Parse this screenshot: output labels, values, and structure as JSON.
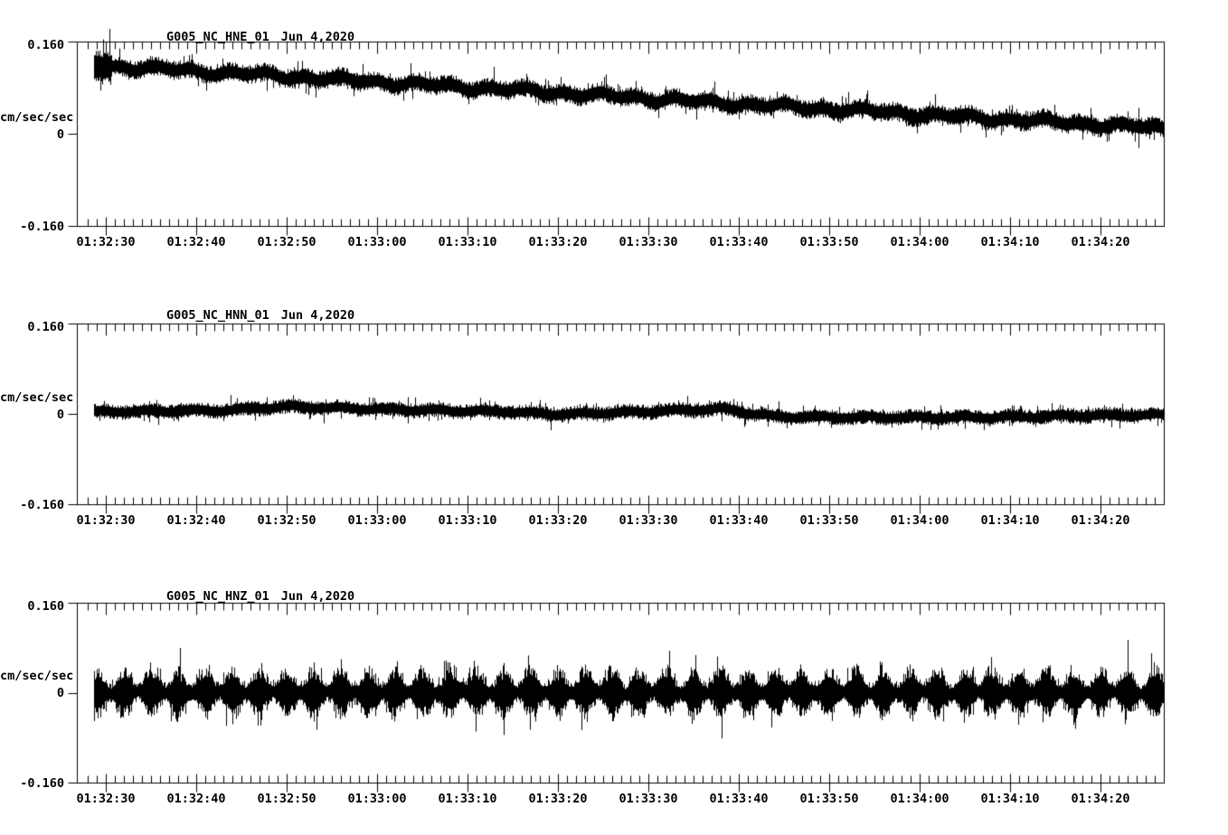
{
  "page": {
    "background": "#ffffff",
    "ink": "#000000"
  },
  "chart_data": [
    {
      "type": "line",
      "kind": "seismogram-trace",
      "title": "G005_NC_HNE_01",
      "date_label": "Jun 4,2020",
      "ylabel": "cm/sec/sec",
      "yticks": [
        "0.160",
        "0",
        "-0.160"
      ],
      "ylim": [
        -0.16,
        0.16
      ],
      "xticklabels": [
        "01:32:30",
        "01:32:40",
        "01:32:50",
        "01:33:00",
        "01:33:10",
        "01:33:20",
        "01:33:30",
        "01:33:40",
        "01:33:50",
        "01:34:00",
        "01:34:10",
        "01:34:20"
      ],
      "x_axis": {
        "minor_tick_s": 1,
        "major_tick_s": 10,
        "xlim_s_after_0132": [
          26.8,
          147.2
        ],
        "grid": false
      },
      "series": {
        "name": "G005_NC_HNE_01",
        "centerline": [
          [
            28.8,
            0.119
          ],
          [
            58,
            0.092
          ],
          [
            103,
            0.049
          ],
          [
            147.2,
            0.009
          ]
        ],
        "noise_halfwidth": 0.017,
        "center_wiggle": [
          [
            0.0035,
            41,
            0.5
          ],
          [
            0.0028,
            97,
            2.1
          ]
        ],
        "spike_prob": 0.06,
        "spike_gain": [
          1.5,
          2.2
        ],
        "onset": {
          "until_s": 30.7,
          "factor": 1.9
        },
        "seed": 20200604
      }
    },
    {
      "type": "line",
      "kind": "seismogram-trace",
      "title": "G005_NC_HNN_01",
      "date_label": "Jun 4,2020",
      "ylabel": "cm/sec/sec",
      "yticks": [
        "0.160",
        "0",
        "-0.160"
      ],
      "ylim": [
        -0.16,
        0.16
      ],
      "xticklabels": [
        "01:32:30",
        "01:32:40",
        "01:32:50",
        "01:33:00",
        "01:33:10",
        "01:33:20",
        "01:33:30",
        "01:33:40",
        "01:33:50",
        "01:34:00",
        "01:34:10",
        "01:34:20"
      ],
      "x_axis": {
        "minor_tick_s": 1,
        "major_tick_s": 10,
        "xlim_s_after_0132": [
          26.8,
          147.2
        ],
        "grid": false
      },
      "series": {
        "name": "G005_NC_HNN_01",
        "centerline": [
          [
            28.8,
            0.004
          ],
          [
            43,
            0.006
          ],
          [
            50,
            0.013
          ],
          [
            61,
            0.008
          ],
          [
            74,
            0.004
          ],
          [
            80,
            -0.001
          ],
          [
            88,
            0.003
          ],
          [
            98,
            0.009
          ],
          [
            104,
            -0.005
          ],
          [
            113,
            -0.006
          ],
          [
            128,
            -0.006
          ],
          [
            138,
            -0.003
          ],
          [
            147.2,
            -0.002
          ]
        ],
        "noise_halfwidth": 0.0135,
        "center_wiggle": [
          [
            0.002,
            53,
            1.0
          ]
        ],
        "spike_prob": 0.07,
        "spike_gain": [
          1.4,
          2.1
        ],
        "seed": 41
      }
    },
    {
      "type": "line",
      "kind": "seismogram-trace",
      "title": "G005_NC_HNZ_01",
      "date_label": "Jun 4,2020",
      "ylabel": "cm/sec/sec",
      "yticks": [
        "0.160",
        "0",
        "-0.160"
      ],
      "ylim": [
        -0.16,
        0.16
      ],
      "xticklabels": [
        "01:32:30",
        "01:32:40",
        "01:32:50",
        "01:33:00",
        "01:33:10",
        "01:33:20",
        "01:33:30",
        "01:33:40",
        "01:33:50",
        "01:34:00",
        "01:34:10",
        "01:34:20"
      ],
      "x_axis": {
        "minor_tick_s": 1,
        "major_tick_s": 10,
        "xlim_s_after_0132": [
          26.8,
          147.2
        ],
        "grid": false
      },
      "series": {
        "name": "G005_NC_HNZ_01",
        "centerline": [
          [
            28.8,
            0.0
          ],
          [
            147.2,
            0.0
          ]
        ],
        "envelope": {
          "period_s": 3,
          "min": 0.017,
          "max": 0.05,
          "phase": 1.2,
          "jitter": 0.3
        },
        "center_wiggle": [
          [
            0.002,
            71,
            0
          ]
        ],
        "spike_prob": 0.12,
        "spike_gain": [
          1.25,
          1.7
        ],
        "seed": 99
      }
    }
  ]
}
